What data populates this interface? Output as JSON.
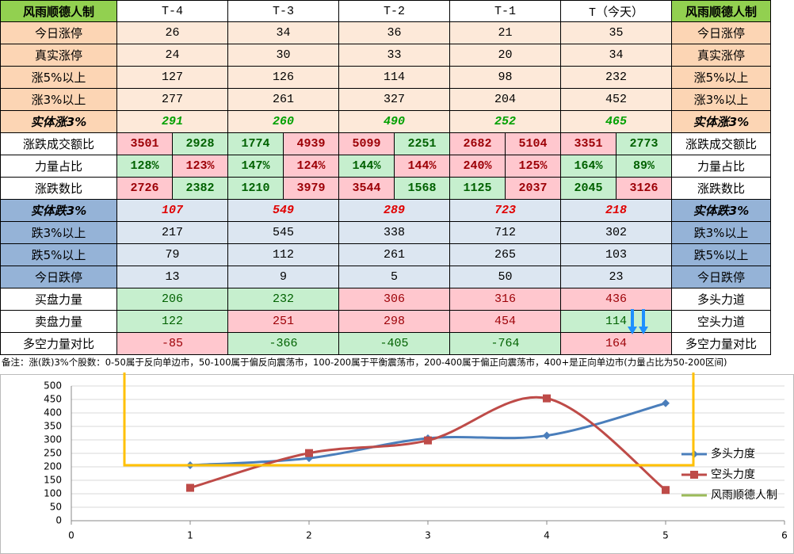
{
  "table": {
    "header": [
      "风雨顺德人制",
      "T-4",
      "T-3",
      "T-2",
      "T-1",
      "T（今天）",
      "风雨顺德人制"
    ],
    "rows": [
      {
        "label": "今日涨停",
        "cells": [
          26,
          34,
          36,
          21,
          35
        ],
        "right": "今日涨停"
      },
      {
        "label": "真实涨停",
        "cells": [
          24,
          30,
          33,
          20,
          34
        ],
        "right": "真实涨停"
      },
      {
        "label": "涨5%以上",
        "cells": [
          127,
          126,
          114,
          98,
          232
        ],
        "right": "涨5%以上"
      },
      {
        "label": "涨3%以上",
        "cells": [
          277,
          261,
          327,
          204,
          452
        ],
        "right": "涨3%以上"
      },
      {
        "label": "实体涨3%",
        "cells": [
          291,
          260,
          490,
          252,
          465
        ],
        "right": "实体涨3%"
      },
      {
        "label": "涨跌成交额比",
        "cells": [
          [
            3501,
            2928
          ],
          [
            1774,
            4939
          ],
          [
            5099,
            2251
          ],
          [
            2682,
            5104
          ],
          [
            3351,
            2773
          ]
        ],
        "right": "涨跌成交额比"
      },
      {
        "label": "力量占比",
        "cells": [
          [
            "128%",
            "123%"
          ],
          [
            "147%",
            "124%"
          ],
          [
            "144%",
            "144%"
          ],
          [
            "240%",
            "125%"
          ],
          [
            "164%",
            "89%"
          ]
        ],
        "right": "力量占比"
      },
      {
        "label": "涨跌数比",
        "cells": [
          [
            2726,
            2382
          ],
          [
            1210,
            3979
          ],
          [
            3544,
            1568
          ],
          [
            1125,
            2037
          ],
          [
            2045,
            3126
          ]
        ],
        "right": "涨跌数比"
      },
      {
        "label": "实体跌3%",
        "cells": [
          107,
          549,
          289,
          723,
          218
        ],
        "right": "实体跌3%"
      },
      {
        "label": "跌3%以上",
        "cells": [
          217,
          545,
          338,
          712,
          302
        ],
        "right": "跌3%以上"
      },
      {
        "label": "跌5%以上",
        "cells": [
          79,
          112,
          261,
          265,
          103
        ],
        "right": "跌5%以上"
      },
      {
        "label": "今日跌停",
        "cells": [
          13,
          9,
          5,
          50,
          23
        ],
        "right": "今日跌停"
      },
      {
        "label": "买盘力量",
        "cells": [
          206,
          232,
          306,
          316,
          436
        ],
        "right": "多头力道"
      },
      {
        "label": "卖盘力量",
        "cells": [
          122,
          251,
          298,
          454,
          114
        ],
        "right": "空头力道"
      },
      {
        "label": "多空力量对比",
        "cells": [
          -85,
          -366,
          -405,
          -764,
          164
        ],
        "right": "多空力量对比"
      }
    ],
    "note": "备注：涨(跌)3%个股数：0-50属于反向单边市，50-100属于偏反向震荡市，100-200属于平衡震荡市，200-400属于偏正向震荡市，400+是正向单边市(力量占比为50-200区间)"
  },
  "chart_data": {
    "type": "line",
    "x": [
      1,
      2,
      3,
      4,
      5
    ],
    "series": [
      {
        "name": "多头力度",
        "color": "#4a7ebb",
        "marker": "diamond",
        "values": [
          206,
          232,
          306,
          316,
          436
        ]
      },
      {
        "name": "空头力度",
        "color": "#be4b48",
        "marker": "square",
        "values": [
          122,
          251,
          298,
          454,
          114
        ]
      },
      {
        "name": "风雨顺德人制",
        "color": "#9bbb59",
        "values": [
          null,
          null,
          null,
          null,
          null
        ]
      }
    ],
    "xlim": [
      0,
      6
    ],
    "xticks": [
      0,
      1,
      2,
      3,
      4,
      5,
      6
    ],
    "ylim": [
      0,
      500
    ],
    "yticks": [
      0,
      50,
      100,
      150,
      200,
      250,
      300,
      350,
      400,
      450,
      500
    ],
    "grid": true,
    "legend": "right"
  }
}
